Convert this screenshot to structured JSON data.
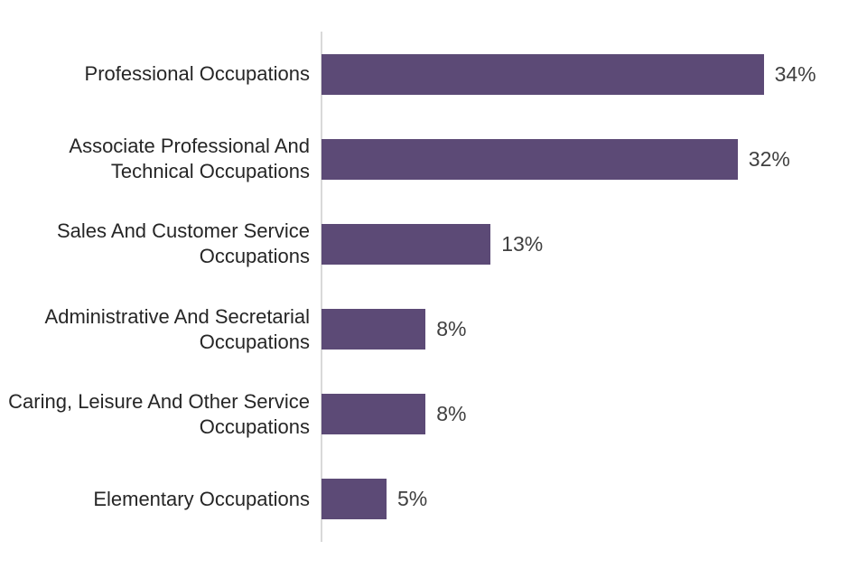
{
  "chart_data": {
    "type": "bar",
    "orientation": "horizontal",
    "title": "",
    "xlabel": "",
    "ylabel": "",
    "grid": false,
    "legend": false,
    "xlim": [
      0,
      40
    ],
    "categories": [
      "Professional Occupations",
      "Associate Professional And Technical Occupations",
      "Sales And Customer Service Occupations",
      "Administrative And Secretarial Occupations",
      "Caring, Leisure And Other Service Occupations",
      "Elementary Occupations"
    ],
    "values": [
      34,
      32,
      13,
      8,
      8,
      5
    ],
    "value_labels": [
      "34%",
      "32%",
      "13%",
      "8%",
      "8%",
      "5%"
    ],
    "colors": {
      "bar": "#5c4a76",
      "category_label": "#262626",
      "value_label": "#404040",
      "axis_line": "#d9d9d9",
      "background": "#ffffff"
    }
  }
}
